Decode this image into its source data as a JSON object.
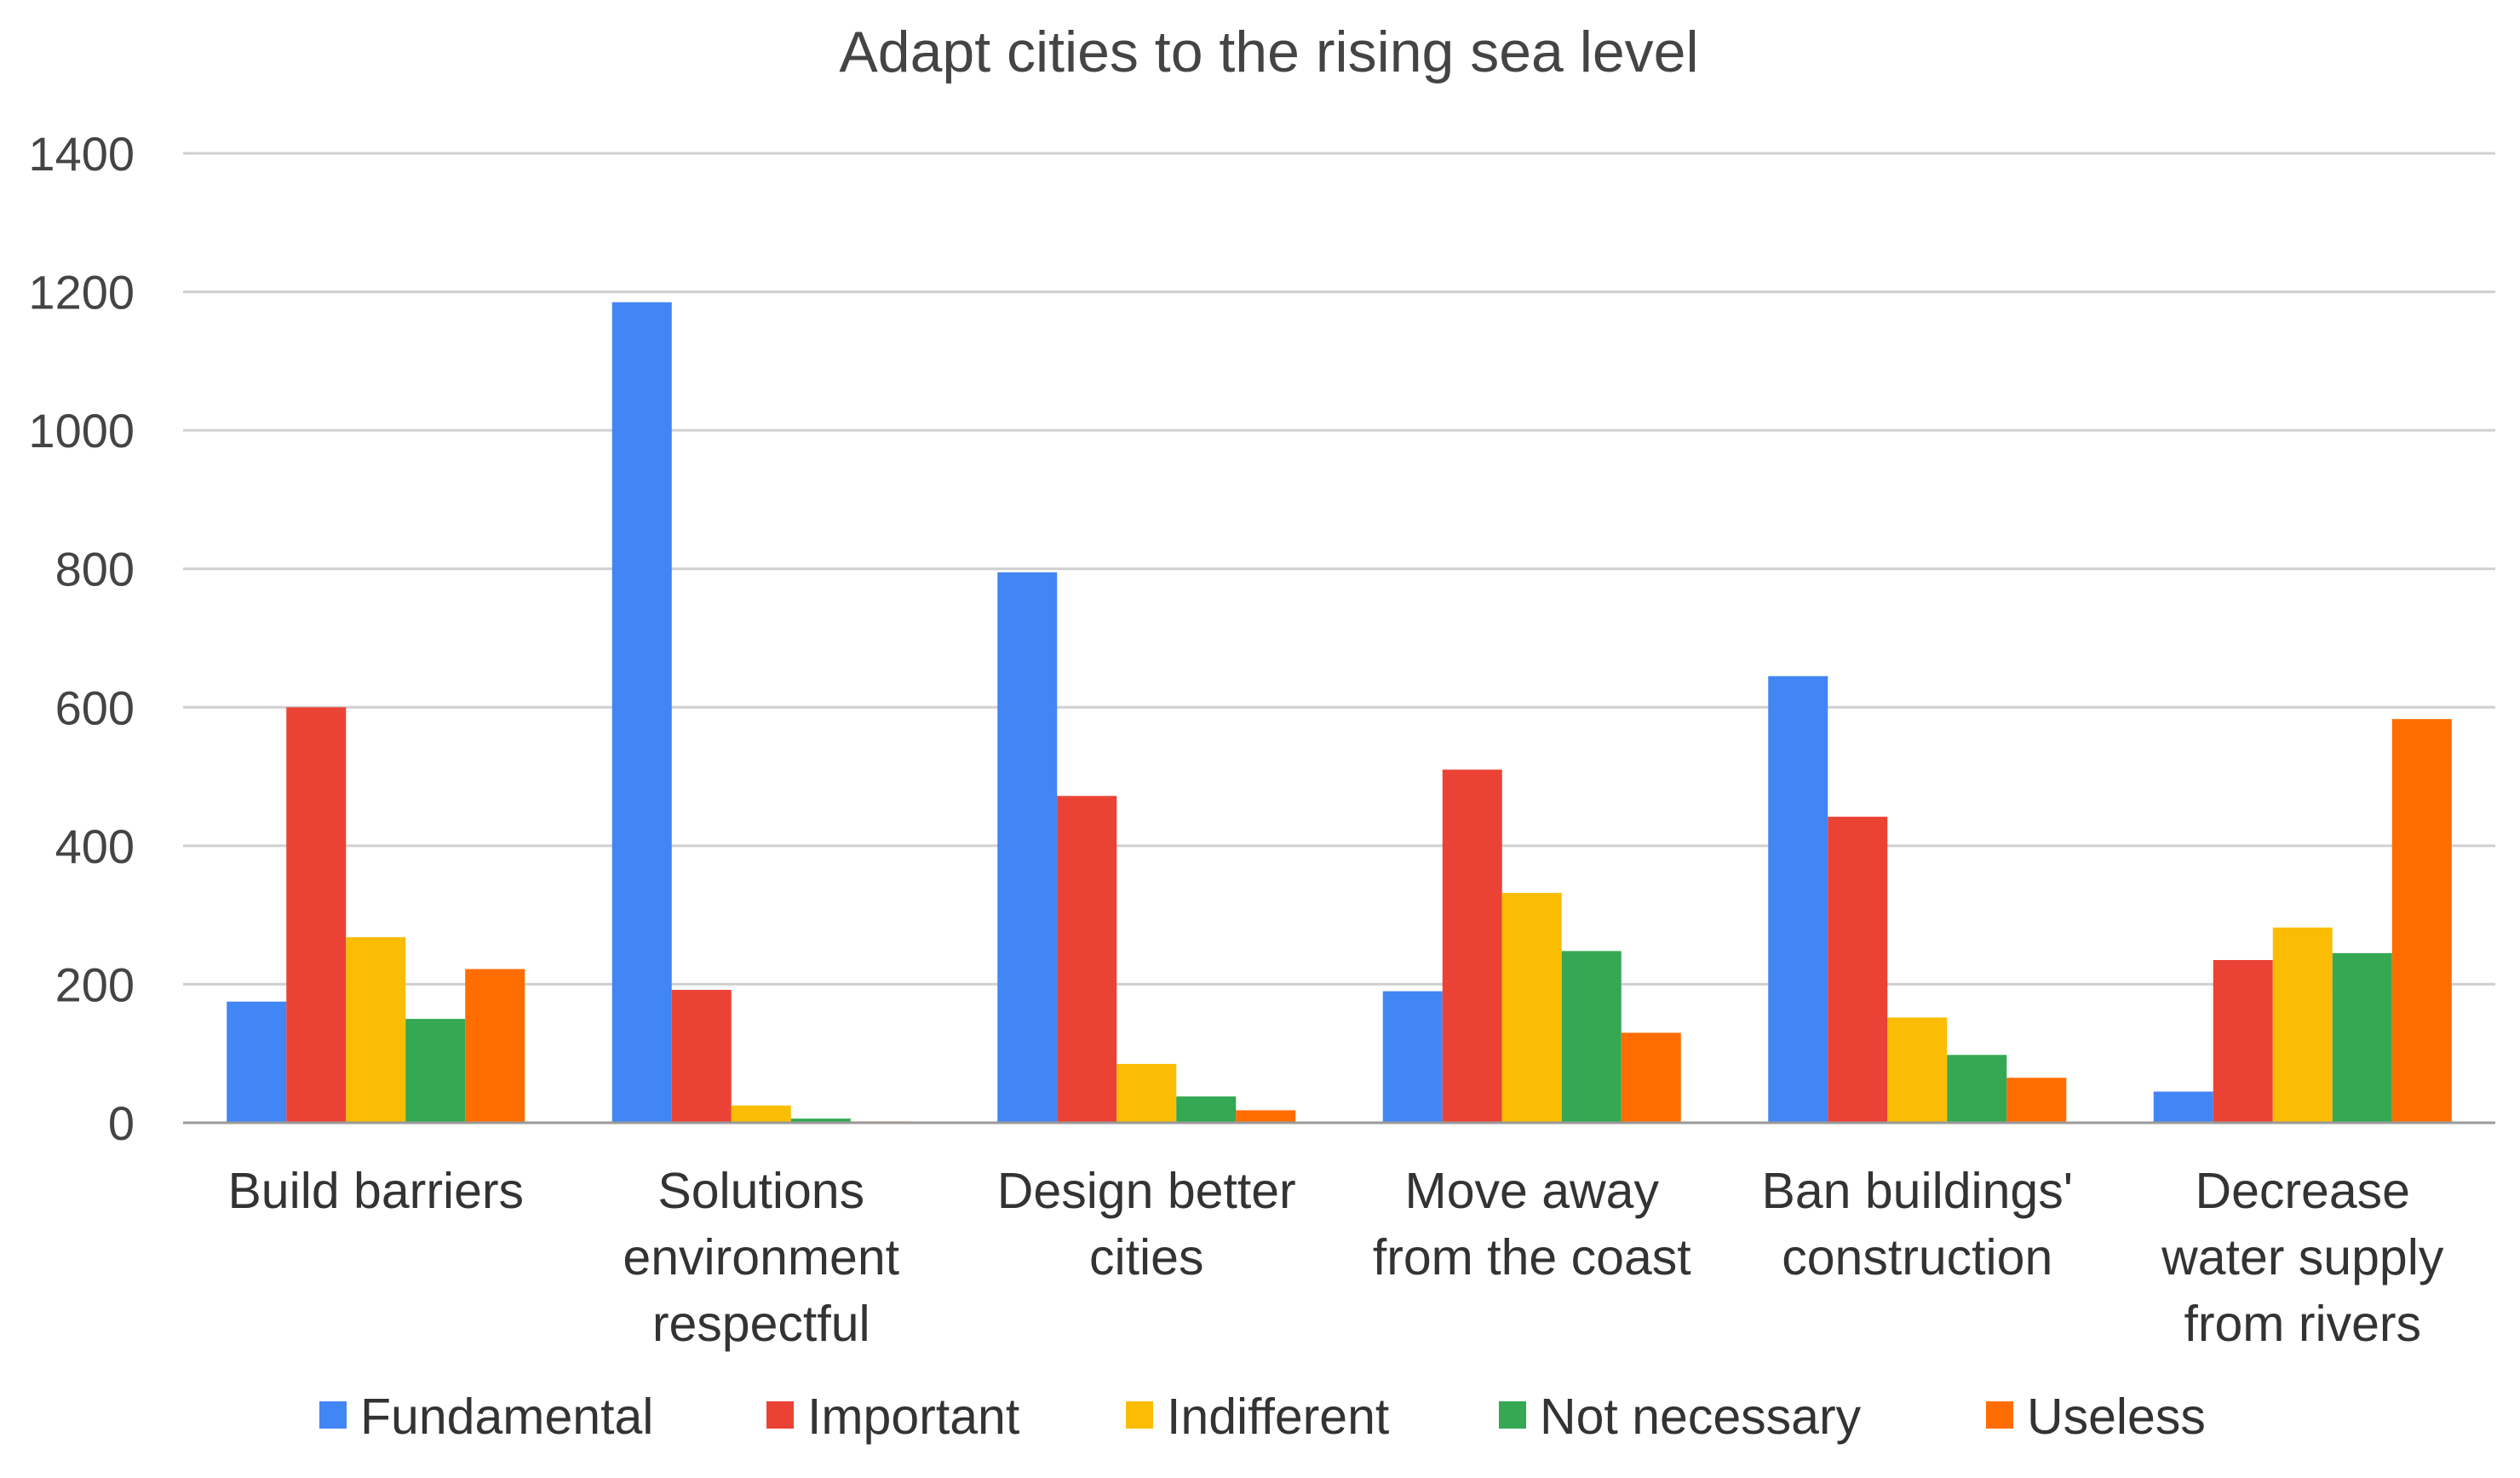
{
  "chart_data": {
    "type": "bar",
    "title": "Adapt cities to the rising sea level",
    "xlabel": "",
    "ylabel": "",
    "ylim": [
      0,
      1400
    ],
    "yticks": [
      0,
      200,
      400,
      600,
      800,
      1000,
      1200,
      1400
    ],
    "grid": true,
    "legend_position": "bottom",
    "categories": [
      [
        "Build barriers"
      ],
      [
        "Solutions",
        "environment",
        "respectful"
      ],
      [
        "Design better",
        "cities"
      ],
      [
        "Move away",
        "from the coast"
      ],
      [
        "Ban buildings'",
        "construction"
      ],
      [
        "Decrease",
        "water supply",
        "from rivers"
      ]
    ],
    "series": [
      {
        "name": "Fundamental",
        "color": "#4285f4",
        "values": [
          175,
          1185,
          795,
          190,
          645,
          45
        ]
      },
      {
        "name": "Important",
        "color": "#ea4335",
        "values": [
          600,
          192,
          472,
          510,
          442,
          235
        ]
      },
      {
        "name": "Indifferent",
        "color": "#fbbc04",
        "values": [
          268,
          25,
          85,
          332,
          152,
          282
        ]
      },
      {
        "name": "Not necessary",
        "color": "#34a853",
        "values": [
          150,
          6,
          38,
          248,
          98,
          245
        ]
      },
      {
        "name": "Useless",
        "color": "#ff6d01",
        "values": [
          222,
          2,
          18,
          130,
          65,
          583
        ]
      }
    ]
  }
}
